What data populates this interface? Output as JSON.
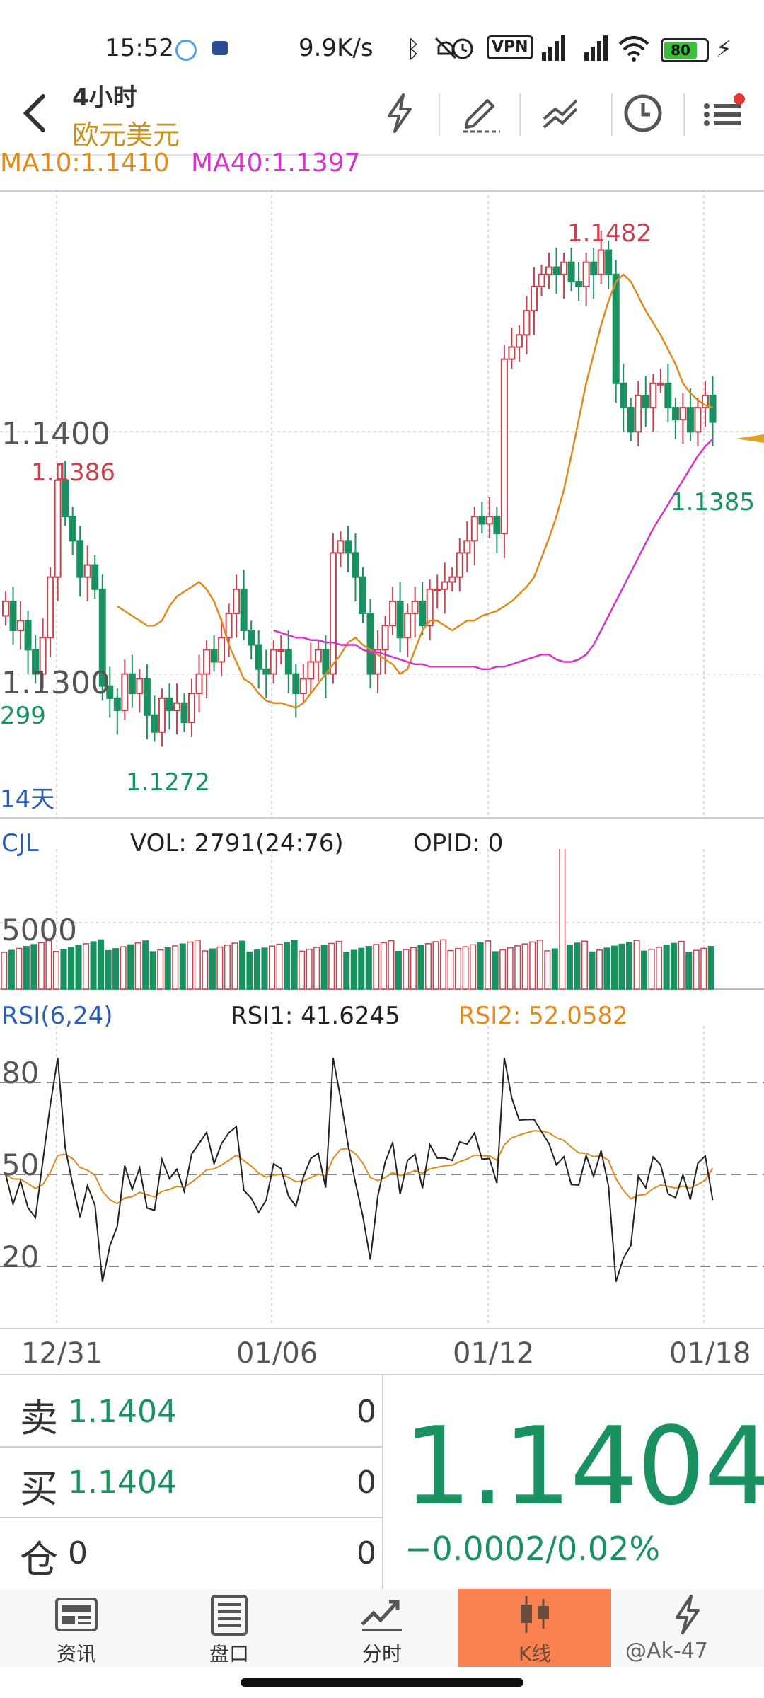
{
  "status_bar": {
    "time": "15:52",
    "speed": "9.9K/s",
    "vpn": "VPN",
    "battery": "80"
  },
  "header": {
    "period": "4小时",
    "symbol": "欧元美元"
  },
  "legend": {
    "ma10": "MA10:1.1410",
    "ma40": "MA40:1.1397"
  },
  "main_chart": {
    "price_labels": [
      "1.1400",
      "1.1300"
    ],
    "partial_label": "299",
    "high_label": "1.1482",
    "left_high_label": "1.1386",
    "low_label": "1.1272",
    "last_low_label": "1.1385",
    "days_label": "14天"
  },
  "volume": {
    "name": "CJL",
    "vol": "VOL: 2791(24:76)",
    "opid": "OPID: 0",
    "axis_label": "5000"
  },
  "rsi": {
    "name": "RSI(6,24)",
    "rsi1": "RSI1: 41.6245",
    "rsi2": "RSI2: 52.0582",
    "levels": [
      "80",
      "50",
      "20"
    ]
  },
  "x_axis": [
    "12/31",
    "01/06",
    "01/12",
    "01/18"
  ],
  "quote": {
    "sell_label": "卖",
    "sell_price": "1.1404",
    "sell_qty": "0",
    "buy_label": "买",
    "buy_price": "1.1404",
    "buy_qty": "0",
    "position_label": "仓",
    "position_value": "0",
    "position_qty": "0",
    "last_price": "1.1404",
    "change": "−0.0002/0.02%"
  },
  "tabs": [
    {
      "label": "资讯",
      "icon": "news-icon"
    },
    {
      "label": "盘口",
      "icon": "orderbook-icon"
    },
    {
      "label": "分时",
      "icon": "timeshare-icon"
    },
    {
      "label": "K线",
      "icon": "candlestick-icon",
      "active": true
    },
    {
      "label": "",
      "icon": "flash-icon"
    }
  ],
  "watermark": "@Ak-47",
  "colors": {
    "up": "#c8424f",
    "down": "#1a9160",
    "ma10": "#e08a1e",
    "ma40": "#d633c9",
    "label_blue": "#2a5db5",
    "active_tab": "#fc8150"
  },
  "chart_data": [
    {
      "type": "candlestick",
      "title": "欧元美元 4小时",
      "x_ticks": [
        "12/31",
        "01/06",
        "01/12",
        "01/18"
      ],
      "ylim": [
        1.124,
        1.15
      ],
      "y_ticks": [
        1.13,
        1.14
      ],
      "series": [
        {
          "name": "MA10",
          "color": "#e08a1e"
        },
        {
          "name": "MA40",
          "color": "#d633c9"
        }
      ],
      "close": [
        1.133,
        1.1318,
        1.1322,
        1.131,
        1.13,
        1.1315,
        1.134,
        1.138,
        1.1365,
        1.1355,
        1.134,
        1.1345,
        1.1335,
        1.1295,
        1.129,
        1.1285,
        1.13,
        1.1292,
        1.1298,
        1.1283,
        1.1276,
        1.129,
        1.1285,
        1.1288,
        1.128,
        1.1292,
        1.13,
        1.131,
        1.1305,
        1.1315,
        1.1325,
        1.1335,
        1.1318,
        1.1312,
        1.1302,
        1.13,
        1.131,
        1.131,
        1.13,
        1.1292,
        1.1298,
        1.1305,
        1.131,
        1.13,
        1.135,
        1.1355,
        1.135,
        1.134,
        1.1325,
        1.13,
        1.131,
        1.132,
        1.133,
        1.1315,
        1.1325,
        1.133,
        1.132,
        1.1335,
        1.1335,
        1.1338,
        1.134,
        1.135,
        1.1355,
        1.1365,
        1.1362,
        1.1365,
        1.1358,
        1.143,
        1.1435,
        1.144,
        1.145,
        1.146,
        1.1465,
        1.1468,
        1.1465,
        1.147,
        1.1462,
        1.146,
        1.147,
        1.1465,
        1.1475,
        1.1465,
        1.142,
        1.141,
        1.14,
        1.1415,
        1.141,
        1.142,
        1.142,
        1.141,
        1.1405,
        1.141,
        1.14,
        1.141,
        1.1415,
        1.1404
      ],
      "ma10": [
        1.1328,
        1.1326,
        1.1324,
        1.1322,
        1.132,
        1.132,
        1.1322,
        1.1328,
        1.1332,
        1.1334,
        1.1336,
        1.1338,
        1.1335,
        1.133,
        1.1322,
        1.1312,
        1.1305,
        1.1298,
        1.1296,
        1.1292,
        1.1289,
        1.1288,
        1.1288,
        1.1287,
        1.1286,
        1.1288,
        1.1292,
        1.1296,
        1.13,
        1.1304,
        1.1308,
        1.1313,
        1.1315,
        1.1312,
        1.131,
        1.1308,
        1.1306,
        1.1304,
        1.13,
        1.1302,
        1.131,
        1.1318,
        1.1322,
        1.1322,
        1.132,
        1.1318,
        1.132,
        1.1322,
        1.1322,
        1.1324,
        1.1325,
        1.1326,
        1.1328,
        1.133,
        1.1333,
        1.1336,
        1.134,
        1.1348,
        1.1356,
        1.1365,
        1.1376,
        1.139,
        1.1405,
        1.142,
        1.1432,
        1.1444,
        1.1454,
        1.1462,
        1.1465,
        1.1462,
        1.1456,
        1.145,
        1.1445,
        1.144,
        1.1434,
        1.1428,
        1.142,
        1.1416,
        1.1413,
        1.1411,
        1.141
      ],
      "ma40": [
        1.1318,
        1.1317,
        1.1316,
        1.1315,
        1.1315,
        1.1314,
        1.1314,
        1.1313,
        1.1313,
        1.1312,
        1.1312,
        1.1312,
        1.131,
        1.1309,
        1.1309,
        1.1308,
        1.1307,
        1.1306,
        1.1305,
        1.1304,
        1.1304,
        1.1303,
        1.1303,
        1.1303,
        1.1303,
        1.1303,
        1.1303,
        1.1303,
        1.1302,
        1.1302,
        1.1303,
        1.1303,
        1.1304,
        1.1305,
        1.1306,
        1.1307,
        1.1308,
        1.1308,
        1.1306,
        1.1305,
        1.1305,
        1.1306,
        1.1308,
        1.1312,
        1.1318,
        1.1324,
        1.133,
        1.1336,
        1.1342,
        1.1348,
        1.1354,
        1.136,
        1.1365,
        1.137,
        1.1375,
        1.138,
        1.1385,
        1.139,
        1.1394,
        1.1397
      ]
    },
    {
      "type": "bar",
      "title": "CJL",
      "axis_labels": [
        "5000"
      ],
      "notes": "volume bars, one large spike near 01/14"
    },
    {
      "type": "line",
      "title": "RSI(6,24)",
      "ylim": [
        0,
        100
      ],
      "reference_lines": [
        80,
        50,
        20
      ],
      "series": [
        {
          "name": "RSI1",
          "color": "#222222",
          "last": 41.6245
        },
        {
          "name": "RSI2",
          "color": "#e08a1e",
          "last": 52.0582
        }
      ]
    }
  ]
}
